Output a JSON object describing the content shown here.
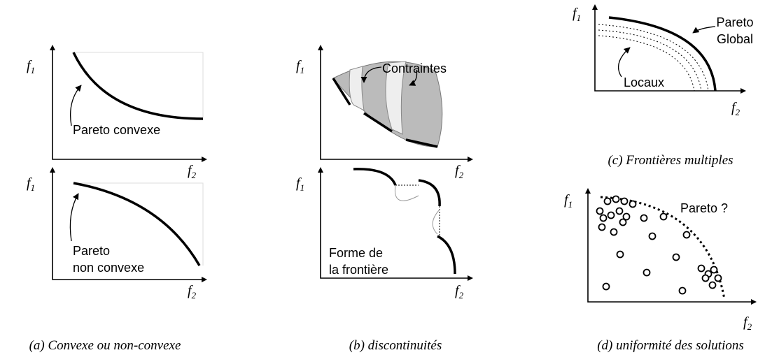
{
  "panels": [
    {
      "caption": "(a) Convexe ou non-convexe",
      "plots": [
        {
          "y_axis": {
            "symbol": "f",
            "index": "1"
          },
          "x_axis": {
            "symbol": "f",
            "index": "2"
          },
          "annotation": [
            "Pareto convexe"
          ]
        },
        {
          "y_axis": {
            "symbol": "f",
            "index": "1"
          },
          "x_axis": {
            "symbol": "f",
            "index": "2"
          },
          "annotation": [
            "Pareto",
            "non convexe"
          ]
        }
      ]
    },
    {
      "caption": "(b) discontinuités",
      "plots": [
        {
          "y_axis": {
            "symbol": "f",
            "index": "1"
          },
          "x_axis": {
            "symbol": "f",
            "index": "2"
          },
          "annotation": [
            "Contraintes"
          ]
        },
        {
          "y_axis": {
            "symbol": "f",
            "index": "1"
          },
          "x_axis": {
            "symbol": "f",
            "index": "2"
          },
          "annotation": [
            "Forme de",
            "la frontière"
          ]
        }
      ]
    },
    {
      "caption": "(c) Frontières multiples",
      "plots": [
        {
          "y_axis": {
            "symbol": "f",
            "index": "1"
          },
          "x_axis": {
            "symbol": "f",
            "index": "2"
          },
          "annotation": [
            "Pareto",
            "Global"
          ],
          "annotation2": [
            "Locaux"
          ]
        }
      ]
    },
    {
      "caption": "(d) uniformité des solutions",
      "plots": [
        {
          "y_axis": {
            "symbol": "f",
            "index": "1"
          },
          "x_axis": {
            "symbol": "f",
            "index": "2"
          },
          "annotation": [
            "Pareto ?"
          ]
        }
      ]
    }
  ]
}
